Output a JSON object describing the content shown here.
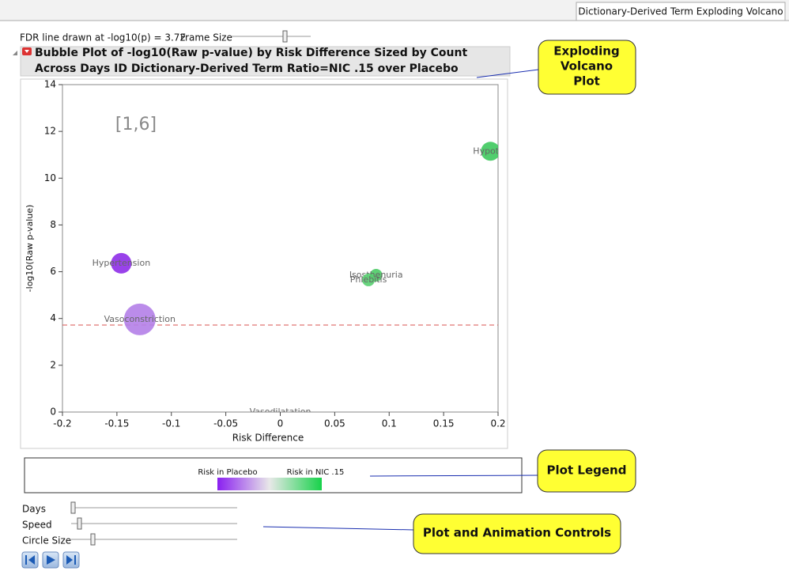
{
  "tab": "Dictionary-Derived Term Exploding Volcano",
  "fdr_label": "FDR line drawn at -log10(p) = 3.72",
  "frame_size_label": "Frame Size",
  "chart_data": {
    "type": "bubble",
    "title": "Bubble Plot of -log10(Raw p-value) by Risk Difference Sized by Count",
    "subtitle": "Across Days ID Dictionary-Derived Term Ratio=NIC .15 over Placebo",
    "annotation": "[1,6]",
    "x_label": "Risk Difference",
    "y_label": "-log10(Raw p-value)",
    "xlim": [
      -0.2,
      0.2
    ],
    "xticks": [
      -0.2,
      -0.15,
      -0.1,
      -0.05,
      0,
      0.05,
      0.1,
      0.15,
      0.2
    ],
    "ylim": [
      0,
      14
    ],
    "yticks": [
      0,
      2,
      4,
      6,
      8,
      10,
      12,
      14
    ],
    "fdr_line": 3.72,
    "fdr_color": "#d9534f",
    "points": {
      "labels": [
        "Hypoter",
        "Hypertension",
        "Isosthenuria",
        "Phlebitis",
        "Vasoconstriction",
        "Vasodilatation"
      ],
      "x": [
        0.193,
        -0.146,
        0.088,
        0.081,
        -0.129,
        0
      ],
      "values": [
        11.15,
        6.36,
        5.85,
        5.65,
        3.96,
        0
      ],
      "sizes": [
        12,
        13,
        8,
        8,
        20,
        0
      ],
      "colors": [
        "#3ec95e",
        "#8e2ee8",
        "#4ccb66",
        "#58cf70",
        "#b47fe8",
        "#cccccc"
      ]
    }
  },
  "legend": {
    "left": "Risk in Placebo",
    "right": "Risk in NIC .15"
  },
  "controls": [
    "Days",
    "Speed",
    "Circle Size"
  ],
  "callouts": {
    "volcano": [
      "Exploding",
      "Volcano",
      "Plot"
    ],
    "legend": "Plot Legend",
    "controls": "Plot and Animation Controls"
  }
}
